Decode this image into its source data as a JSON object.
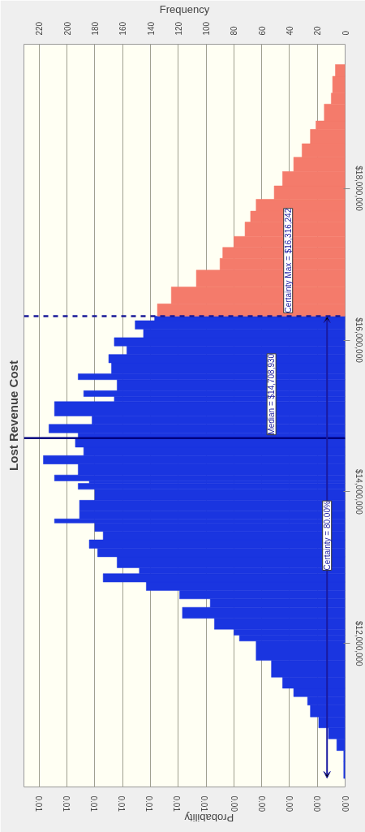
{
  "chart_data": {
    "type": "histogram",
    "orientation": "horizontal",
    "title": "Lost Revenue Cost",
    "xlabel": "Frequency",
    "x2label": "Probability",
    "xlim": [
      231,
      0
    ],
    "xticks": [
      0,
      20,
      40,
      60,
      80,
      100,
      120,
      140,
      160,
      180,
      200,
      220
    ],
    "x2lim": [
      0.0128,
      0
    ],
    "x2ticks": [
      {
        "value": 0,
        "label": "0.00"
      },
      {
        "value": 0.0011,
        "label": "0.00"
      },
      {
        "value": 0.0022,
        "label": "0.00"
      },
      {
        "value": 0.0033,
        "label": "0.00"
      },
      {
        "value": 0.0044,
        "label": "0.00"
      },
      {
        "value": 0.0056,
        "label": "0.01"
      },
      {
        "value": 0.0067,
        "label": "0.01"
      },
      {
        "value": 0.0078,
        "label": "0.01"
      },
      {
        "value": 0.0089,
        "label": "0.01"
      },
      {
        "value": 0.01,
        "label": "0.01"
      },
      {
        "value": 0.0111,
        "label": "0.01"
      },
      {
        "value": 0.0122,
        "label": "0.01"
      }
    ],
    "ylim": [
      10110000,
      19900000
    ],
    "yticks": [
      {
        "value": 12000000,
        "label": "$12,000,000"
      },
      {
        "value": 14000000,
        "label": "$14,000,000"
      },
      {
        "value": 16000000,
        "label": "$16,000,000"
      },
      {
        "value": 18000000,
        "label": "$18,000,000"
      }
    ],
    "grid": "x",
    "bins": [
      10222000,
      10444000,
      10589000,
      10744000,
      10889000,
      11033000,
      11189000,
      11300000,
      11411000,
      11556000,
      11778000,
      12033000,
      12111000,
      12189000,
      12333000,
      12478000,
      12589000,
      12700000,
      12811000,
      12922000,
      13000000,
      13144000,
      13256000,
      13367000,
      13478000,
      13589000,
      13644000,
      13744000,
      13889000,
      14033000,
      14111000,
      14144000,
      14222000,
      14367000,
      14478000,
      14589000,
      14700000,
      14778000,
      14889000,
      15000000,
      15189000,
      15256000,
      15333000,
      15478000,
      15556000,
      15700000,
      15811000,
      15922000,
      16033000,
      16144000,
      16256000,
      16316000,
      16478000,
      16700000,
      16922000,
      17078000,
      17222000,
      17367000,
      17556000,
      17700000,
      17856000,
      18033000,
      18222000,
      18411000,
      18589000,
      18778000,
      18889000,
      19111000,
      19256000,
      19478000,
      19633000
    ],
    "values": [
      1,
      1,
      6,
      12,
      19,
      25,
      27,
      37,
      45,
      53,
      64,
      76,
      80,
      94,
      117,
      97,
      119,
      143,
      174,
      148,
      164,
      178,
      184,
      174,
      180,
      209,
      191,
      191,
      180,
      192,
      184,
      209,
      192,
      217,
      188,
      194,
      192,
      213,
      182,
      209,
      166,
      188,
      164,
      192,
      168,
      170,
      157,
      166,
      145,
      151,
      137,
      135,
      125,
      107,
      90,
      88,
      80,
      72,
      68,
      64,
      51,
      45,
      37,
      31,
      25,
      21,
      15,
      10,
      9,
      7
    ],
    "colors": [
      "#1a35e0",
      "#1a35e0",
      "#1a35e0",
      "#1a35e0",
      "#1a35e0",
      "#1a35e0",
      "#1a35e0",
      "#1a35e0",
      "#1a35e0",
      "#1a35e0",
      "#1a35e0",
      "#1a35e0",
      "#1a35e0",
      "#1a35e0",
      "#1a35e0",
      "#1a35e0",
      "#1a35e0",
      "#1a35e0",
      "#1a35e0",
      "#1a35e0",
      "#1a35e0",
      "#1a35e0",
      "#1a35e0",
      "#1a35e0",
      "#1a35e0",
      "#1a35e0",
      "#1a35e0",
      "#1a35e0",
      "#1a35e0",
      "#1a35e0",
      "#1a35e0",
      "#1a35e0",
      "#1a35e0",
      "#1a35e0",
      "#1a35e0",
      "#1a35e0",
      "#1a35e0",
      "#1a35e0",
      "#1a35e0",
      "#1a35e0",
      "#1a35e0",
      "#1a35e0",
      "#1a35e0",
      "#1a35e0",
      "#1a35e0",
      "#1a35e0",
      "#1a35e0",
      "#1a35e0",
      "#1a35e0",
      "#1a35e0",
      "#1a35e0",
      "#f47b6b",
      "#f47b6b",
      "#f47b6b",
      "#f47b6b",
      "#f47b6b",
      "#f47b6b",
      "#f47b6b",
      "#f47b6b",
      "#f47b6b",
      "#f47b6b",
      "#f47b6b",
      "#f47b6b",
      "#f47b6b",
      "#f47b6b",
      "#f47b6b",
      "#f47b6b",
      "#f47b6b",
      "#f47b6b",
      "#f47b6b"
    ],
    "ref_lines": [
      {
        "axis": "y",
        "value": 14708930,
        "label": "Median = $14,708,930",
        "color": "#000080",
        "line_style": "solid"
      },
      {
        "axis": "y",
        "value": 16316242,
        "label": "Certainty Max = $16,316,242",
        "color": "#1a1a99",
        "line_style": "dashed"
      }
    ],
    "annotations": [
      "Certainty = 80.00%"
    ]
  }
}
